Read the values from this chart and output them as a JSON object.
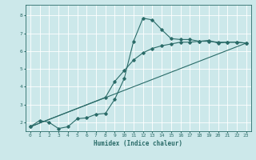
{
  "xlabel": "Humidex (Indice chaleur)",
  "bg_color": "#cce8ea",
  "grid_color": "#ffffff",
  "line_color": "#2a6b68",
  "xlim": [
    -0.5,
    23.5
  ],
  "ylim": [
    1.5,
    8.6
  ],
  "yticks": [
    2,
    3,
    4,
    5,
    6,
    7,
    8
  ],
  "xticks": [
    0,
    1,
    2,
    3,
    4,
    5,
    6,
    7,
    8,
    9,
    10,
    11,
    12,
    13,
    14,
    15,
    16,
    17,
    18,
    19,
    20,
    21,
    22,
    23
  ],
  "line1_x": [
    0,
    1,
    2,
    3,
    4,
    5,
    6,
    7,
    8,
    9,
    10,
    11,
    12,
    13,
    14,
    15,
    16,
    17,
    18,
    19,
    20,
    21,
    22,
    23
  ],
  "line1_y": [
    1.75,
    2.1,
    2.0,
    1.65,
    1.75,
    2.2,
    2.25,
    2.45,
    2.5,
    3.3,
    4.45,
    6.55,
    7.85,
    7.75,
    7.2,
    6.7,
    6.65,
    6.65,
    6.55,
    6.6,
    6.45,
    6.5,
    6.5,
    6.45
  ],
  "line2_x": [
    0,
    8,
    9,
    10,
    11,
    12,
    13,
    14,
    15,
    16,
    17,
    18,
    19,
    20,
    21,
    22,
    23
  ],
  "line2_y": [
    1.75,
    3.4,
    4.3,
    4.9,
    5.5,
    5.9,
    6.15,
    6.3,
    6.4,
    6.5,
    6.5,
    6.55,
    6.55,
    6.5,
    6.5,
    6.5,
    6.45
  ],
  "line3_x": [
    0,
    23
  ],
  "line3_y": [
    1.75,
    6.45
  ]
}
